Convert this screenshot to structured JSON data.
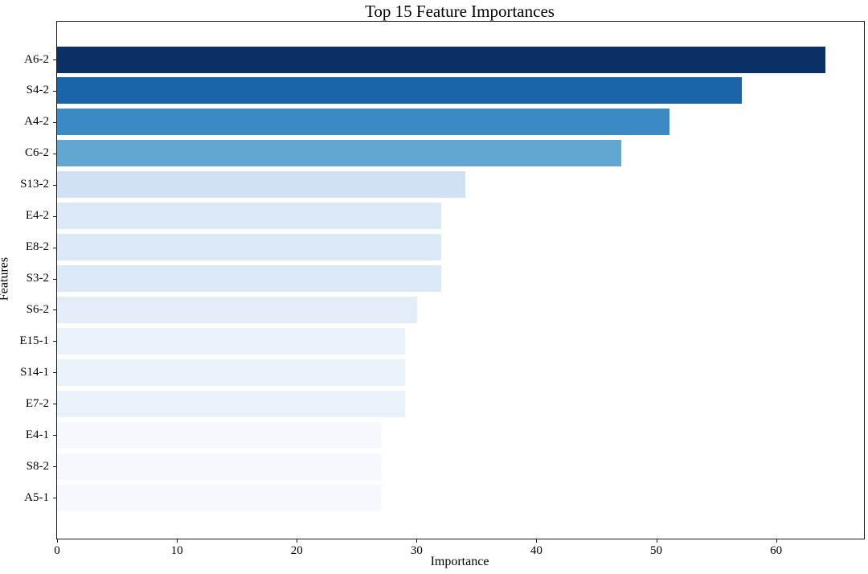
{
  "chart_data": {
    "type": "bar",
    "orientation": "horizontal",
    "title": "Top 15 Feature Importances",
    "xlabel": "Importance",
    "ylabel": "Features",
    "xlim": [
      0,
      67.2
    ],
    "x_ticks": [
      0,
      10,
      20,
      30,
      40,
      50,
      60
    ],
    "grid": false,
    "legend": "none",
    "categories": [
      "A6-2",
      "S4-2",
      "A4-2",
      "C6-2",
      "S13-2",
      "E4-2",
      "E8-2",
      "S3-2",
      "S6-2",
      "E15-1",
      "S14-1",
      "E7-2",
      "E4-1",
      "S8-2",
      "A5-1"
    ],
    "values": [
      64,
      57,
      51,
      47,
      34,
      32,
      32,
      32,
      30,
      29,
      29,
      29,
      27,
      27,
      27
    ],
    "bar_colors": [
      "#0a3066",
      "#1a63a8",
      "#3c8ac3",
      "#61a7d2",
      "#cfe1f2",
      "#dbe8f6",
      "#dbe8f6",
      "#dbe8f6",
      "#e3edf8",
      "#e9f1fb",
      "#e9f1fb",
      "#e9f1fb",
      "#f5f9fe",
      "#f5f9fe",
      "#f5f9fe"
    ],
    "axis_color": "#1a1a1a",
    "text_color": "#000000"
  }
}
